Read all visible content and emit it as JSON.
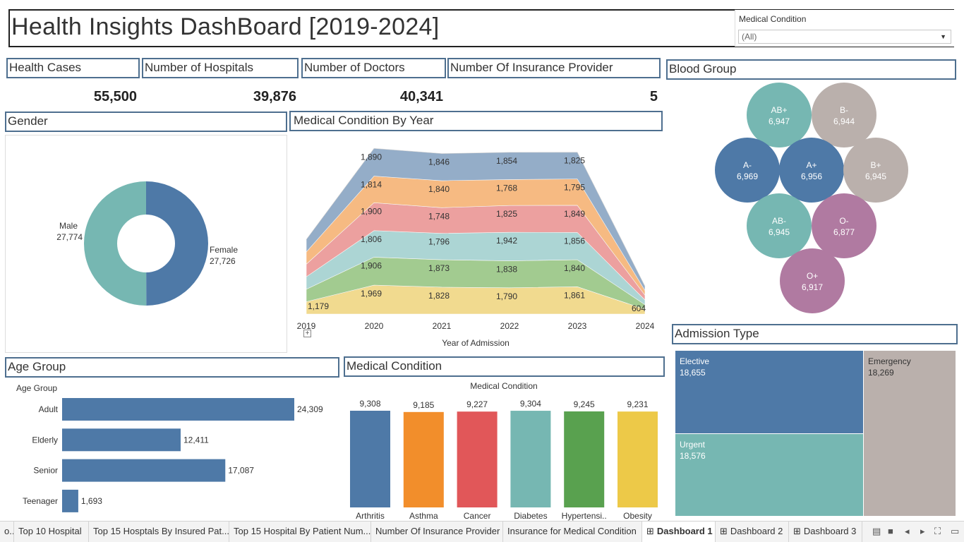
{
  "header": {
    "title": "Health Insights DashBoard [2019-2024]"
  },
  "filter": {
    "label": "Medical Condition",
    "value": "(All)"
  },
  "kpis": [
    {
      "label": "Health Cases",
      "value": "55,500"
    },
    {
      "label": "Number of Hospitals",
      "value": "39,876"
    },
    {
      "label": "Number of Doctors",
      "value": "40,341"
    },
    {
      "label": "Number Of Insurance Provider",
      "value": "5"
    }
  ],
  "sections": {
    "gender": "Gender",
    "medical_by_year": "Medical Condition By Year",
    "blood_group": "Blood Group",
    "age_group": "Age Group",
    "medical_condition": "Medical Condition",
    "admission_type": "Admission Type"
  },
  "chart_data": [
    {
      "id": "gender",
      "type": "pie",
      "donut": true,
      "slices": [
        {
          "label": "Female",
          "value": 27726,
          "display": "27,726",
          "color": "#4e79a7"
        },
        {
          "label": "Male",
          "value": 27774,
          "display": "27,774",
          "color": "#76b7b2"
        }
      ]
    },
    {
      "id": "medical_by_year",
      "type": "area",
      "stacked": true,
      "xlabel": "Year of Admission",
      "x": [
        "2019",
        "2020",
        "2021",
        "2022",
        "2023",
        "2024"
      ],
      "series": [
        {
          "values": [
            null,
            1969,
            1828,
            1790,
            1861,
            null
          ],
          "labels": [
            "1,179",
            "1,969",
            "1,828",
            "1,790",
            "1,861",
            "604"
          ],
          "color": "#f1d98a",
          "base": [
            1179,
            1969,
            1828,
            1790,
            1861,
            604
          ]
        },
        {
          "values": [
            null,
            1906,
            1873,
            1838,
            1840,
            null
          ],
          "labels": [
            "",
            "1,906",
            "1,873",
            "1,838",
            "1,840",
            ""
          ],
          "color": "#9ec98b"
        },
        {
          "values": [
            null,
            1806,
            1796,
            1942,
            1856,
            null
          ],
          "labels": [
            "",
            "1,806",
            "1,796",
            "1,942",
            "1,856",
            ""
          ],
          "color": "#a8d3d2"
        },
        {
          "values": [
            null,
            1900,
            1748,
            1825,
            1849,
            null
          ],
          "labels": [
            "",
            "1,900",
            "1,748",
            "1,825",
            "1,849",
            ""
          ],
          "color": "#ec9b9a"
        },
        {
          "values": [
            null,
            1814,
            1840,
            1768,
            1795,
            null
          ],
          "labels": [
            "",
            "1,814",
            "1,840",
            "1,768",
            "1,795",
            ""
          ],
          "color": "#f6b77c"
        },
        {
          "values": [
            null,
            1890,
            1846,
            1854,
            1825,
            null
          ],
          "labels": [
            "",
            "1,890",
            "1,846",
            "1,854",
            "1,825",
            ""
          ],
          "color": "#8fa9c6"
        }
      ]
    },
    {
      "id": "blood_group",
      "type": "packed-bubble",
      "items": [
        {
          "label": "AB+",
          "value": 6947,
          "display": "6,947",
          "color": "#76b7b2"
        },
        {
          "label": "B-",
          "value": 6944,
          "display": "6,944",
          "color": "#bab0ac"
        },
        {
          "label": "A-",
          "value": 6969,
          "display": "6,969",
          "color": "#4e79a7"
        },
        {
          "label": "A+",
          "value": 6956,
          "display": "6,956",
          "color": "#4e79a7"
        },
        {
          "label": "B+",
          "value": 6945,
          "display": "6,945",
          "color": "#bab0ac"
        },
        {
          "label": "AB-",
          "value": 6945,
          "display": "6,945",
          "color": "#76b7b2"
        },
        {
          "label": "O-",
          "value": 6877,
          "display": "6,877",
          "color": "#b07aa1"
        },
        {
          "label": "O+",
          "value": 6917,
          "display": "6,917",
          "color": "#b07aa1"
        }
      ]
    },
    {
      "id": "age_group",
      "type": "bar",
      "orientation": "horizontal",
      "ylabel": "Age Group",
      "categories": [
        "Adult",
        "Elderly",
        "Senior",
        "Teenager"
      ],
      "values": [
        24309,
        12411,
        17087,
        1693
      ],
      "labels": [
        "24,309",
        "12,411",
        "17,087",
        "1,693"
      ],
      "color": "#4e79a7"
    },
    {
      "id": "medical_condition",
      "type": "bar",
      "title": "Medical Condition",
      "categories": [
        "Arthritis",
        "Asthma",
        "Cancer",
        "Diabetes",
        "Hypertensi..",
        "Obesity"
      ],
      "values": [
        9308,
        9185,
        9227,
        9304,
        9245,
        9231
      ],
      "labels": [
        "9,308",
        "9,185",
        "9,227",
        "9,304",
        "9,245",
        "9,231"
      ],
      "colors": [
        "#4e79a7",
        "#f28e2b",
        "#e15759",
        "#76b7b2",
        "#59a14f",
        "#edc948"
      ]
    },
    {
      "id": "admission_type",
      "type": "treemap",
      "items": [
        {
          "label": "Elective",
          "value": 18655,
          "display": "18,655",
          "color": "#4e79a7"
        },
        {
          "label": "Emergency",
          "value": 18269,
          "display": "18,269",
          "color": "#bab0ac"
        },
        {
          "label": "Urgent",
          "value": 18576,
          "display": "18,576",
          "color": "#76b7b2"
        }
      ]
    }
  ],
  "tabs": [
    {
      "label": "o..",
      "icon": ""
    },
    {
      "label": "Top 10 Hospital",
      "icon": ""
    },
    {
      "label": "Top 15 Hosptals By  Insured Pat...",
      "icon": ""
    },
    {
      "label": "Top 15 Hospital By Patient Num...",
      "icon": ""
    },
    {
      "label": "Number Of Insurance Provider",
      "icon": ""
    },
    {
      "label": "Insurance for Medical Condition",
      "icon": ""
    },
    {
      "label": "Dashboard 1",
      "icon": "grid-icon"
    },
    {
      "label": "Dashboard 2",
      "icon": "grid-icon"
    },
    {
      "label": "Dashboard 3",
      "icon": "grid-icon"
    }
  ],
  "nav_icons": [
    "film-strip-icon",
    "grid-view-icon",
    "prev-icon",
    "next-icon",
    "fullscreen-icon",
    "presentation-icon"
  ]
}
